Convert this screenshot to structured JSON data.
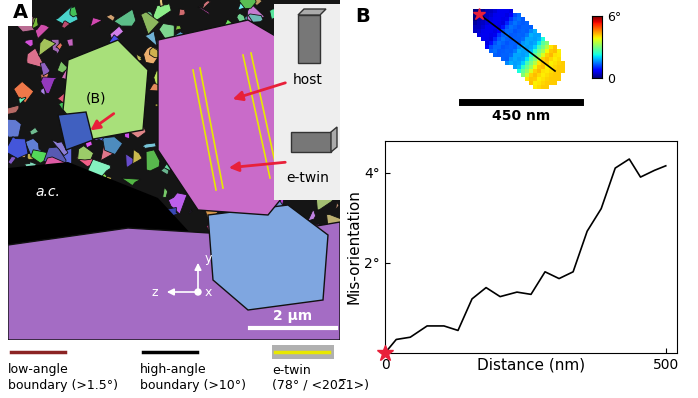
{
  "chart_data": {
    "type": "line",
    "xlabel": "Distance (nm)",
    "ylabel": "Mis-orientation",
    "x": [
      0,
      20,
      45,
      75,
      105,
      130,
      155,
      180,
      205,
      235,
      260,
      285,
      310,
      335,
      360,
      385,
      410,
      435,
      455,
      480,
      500
    ],
    "values": [
      0,
      0.3,
      0.35,
      0.6,
      0.6,
      0.5,
      1.2,
      1.45,
      1.25,
      1.35,
      1.3,
      1.8,
      1.65,
      1.8,
      2.7,
      3.2,
      4.1,
      4.3,
      3.9,
      4.05,
      4.15
    ],
    "color": "#000000",
    "marker": "star",
    "xlim": [
      0,
      520
    ],
    "xticks": [
      0,
      500
    ],
    "ylim": [
      0,
      4.7
    ],
    "yticks": [
      {
        "value": 2,
        "label": "2°"
      },
      {
        "value": 4,
        "label": "4°"
      }
    ]
  },
  "figure": {
    "panel_a": {
      "label": "A",
      "grain_label": "(B)",
      "annotations": [
        "host",
        "e-twin"
      ],
      "region_label": "a.c.",
      "axes_labels": {
        "y": "y",
        "z": "z",
        "x": "x"
      },
      "scale_bar": "2 μm",
      "legend": [
        {
          "lines": [
            "low-angle",
            "boundary (>1.5°)"
          ],
          "color": "#8b2323"
        },
        {
          "lines": [
            "high-angle",
            "boundary (>10°)"
          ],
          "color": "#000000"
        },
        {
          "lines": [
            "e-twin",
            "(78° / <202̅1>)"
          ],
          "color": "#e8e800"
        }
      ]
    },
    "panel_b": {
      "label": "B",
      "scale_bar": "450 nm",
      "colorbar": {
        "range": [
          0,
          6
        ],
        "ticks": [
          {
            "value": 0,
            "label": "0"
          },
          {
            "value": 6,
            "label": "6°"
          }
        ]
      }
    }
  }
}
